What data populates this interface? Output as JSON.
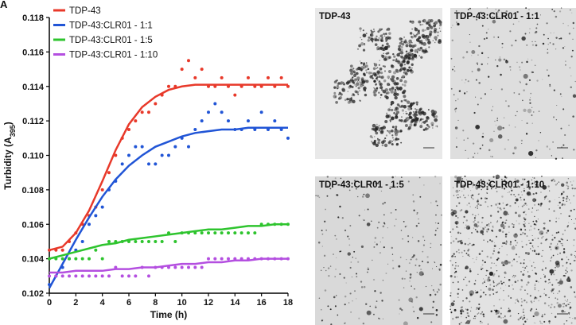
{
  "panel_label": "A",
  "chart_data": {
    "type": "scatter",
    "xlabel": "Time (h)",
    "ylabel": [
      "Turbidity (A",
      "395",
      ")"
    ],
    "xlim": [
      0,
      18
    ],
    "ylim": [
      0.102,
      0.118
    ],
    "xticks": [
      0,
      2,
      4,
      6,
      8,
      10,
      12,
      14,
      16,
      18
    ],
    "yticks": [
      0.102,
      0.104,
      0.106,
      0.108,
      {
        "value": 0.11,
        "label": "0.110"
      },
      0.112,
      0.114,
      0.116,
      0.118
    ],
    "legend": "upper left",
    "x": [
      0,
      0.5,
      1,
      1.5,
      2,
      2.5,
      3,
      3.5,
      4,
      4.5,
      5,
      5.5,
      6,
      6.5,
      7,
      7.5,
      8,
      8.5,
      9,
      9.5,
      10,
      10.5,
      11,
      11.5,
      12,
      12.5,
      13,
      13.5,
      14,
      14.5,
      15,
      15.5,
      16,
      16.5,
      17,
      17.5,
      18
    ],
    "fit_x": [
      0,
      1,
      2,
      3,
      4,
      5,
      6,
      7,
      8,
      9,
      10,
      11,
      12,
      13,
      14,
      15,
      16,
      17,
      18
    ],
    "series": [
      {
        "name": "TDP-43",
        "color": "#e8392a",
        "values": [
          0.1045,
          0.1045,
          0.1045,
          0.105,
          0.1055,
          0.106,
          0.1065,
          0.107,
          0.108,
          0.109,
          0.11,
          0.111,
          0.1115,
          0.112,
          0.1125,
          0.1125,
          0.113,
          0.1135,
          0.114,
          0.114,
          0.115,
          0.1155,
          0.1145,
          0.115,
          0.114,
          0.114,
          0.1145,
          0.114,
          0.1135,
          0.114,
          0.1145,
          0.114,
          0.114,
          0.1145,
          0.114,
          0.1145,
          0.114
        ],
        "fit": [
          0.1045,
          0.1047,
          0.1055,
          0.1068,
          0.1085,
          0.1103,
          0.1118,
          0.1128,
          0.1134,
          0.1138,
          0.114,
          0.1141,
          0.1141,
          0.1141,
          0.1141,
          0.1141,
          0.1141,
          0.1141,
          0.1141
        ]
      },
      {
        "name": "TDP-43:CLR01 - 1:1",
        "color": "#2155d6",
        "values": [
          0.1025,
          0.103,
          0.1035,
          0.104,
          0.1045,
          0.105,
          0.106,
          0.1065,
          0.107,
          0.108,
          0.1085,
          0.1095,
          0.11,
          0.1105,
          0.1105,
          0.1095,
          0.1095,
          0.11,
          0.11,
          0.1105,
          0.111,
          0.1105,
          0.1115,
          0.112,
          0.1125,
          0.113,
          0.1125,
          0.112,
          0.1115,
          0.1115,
          0.112,
          0.1115,
          0.1125,
          0.1115,
          0.112,
          0.1115,
          0.111
        ],
        "fit": [
          0.1023,
          0.1037,
          0.1051,
          0.1064,
          0.1076,
          0.1086,
          0.1094,
          0.11,
          0.1105,
          0.1108,
          0.1111,
          0.1113,
          0.1114,
          0.1115,
          0.1115,
          0.1116,
          0.1116,
          0.1116,
          0.1116
        ]
      },
      {
        "name": "TDP-43:CLR01 - 1:5",
        "color": "#2ec42e",
        "values": [
          0.104,
          0.104,
          0.104,
          0.104,
          0.104,
          0.104,
          0.104,
          0.1045,
          0.104,
          0.105,
          0.105,
          0.105,
          0.105,
          0.105,
          0.105,
          0.105,
          0.105,
          0.105,
          0.1055,
          0.105,
          0.1055,
          0.1055,
          0.1055,
          0.1055,
          0.1055,
          0.1055,
          0.1055,
          0.1055,
          0.1055,
          0.1055,
          0.1055,
          0.1055,
          0.106,
          0.106,
          0.106,
          0.106,
          0.106
        ],
        "fit": [
          0.104,
          0.1042,
          0.1044,
          0.1046,
          0.1048,
          0.1049,
          0.1051,
          0.1052,
          0.1053,
          0.1054,
          0.1055,
          0.1056,
          0.1057,
          0.1057,
          0.1058,
          0.1059,
          0.1059,
          0.106,
          0.106
        ]
      },
      {
        "name": "TDP-43:CLR01 - 1:10",
        "color": "#b44fe0",
        "values": [
          0.103,
          0.103,
          0.103,
          0.103,
          0.103,
          0.103,
          0.103,
          0.103,
          0.103,
          0.103,
          0.1035,
          0.103,
          0.103,
          0.103,
          0.1035,
          0.103,
          0.1035,
          0.1035,
          0.1035,
          0.1035,
          0.1035,
          0.1035,
          0.1035,
          0.1035,
          0.104,
          0.104,
          0.104,
          0.104,
          0.104,
          0.104,
          0.104,
          0.104,
          0.104,
          0.104,
          0.104,
          0.104,
          0.104
        ],
        "fit": [
          0.1032,
          0.1032,
          0.1033,
          0.1033,
          0.1033,
          0.1034,
          0.1034,
          0.1035,
          0.1035,
          0.1036,
          0.1037,
          0.1037,
          0.1038,
          0.1038,
          0.1039,
          0.1039,
          0.104,
          0.104,
          0.104
        ]
      }
    ]
  },
  "images": [
    {
      "title": "TDP-43"
    },
    {
      "title": "TDP-43:CLR01 - 1:1"
    },
    {
      "title": "TDP-43:CLR01 - 1:5"
    },
    {
      "title": "TDP-43:CLR01 - 1:10"
    }
  ]
}
